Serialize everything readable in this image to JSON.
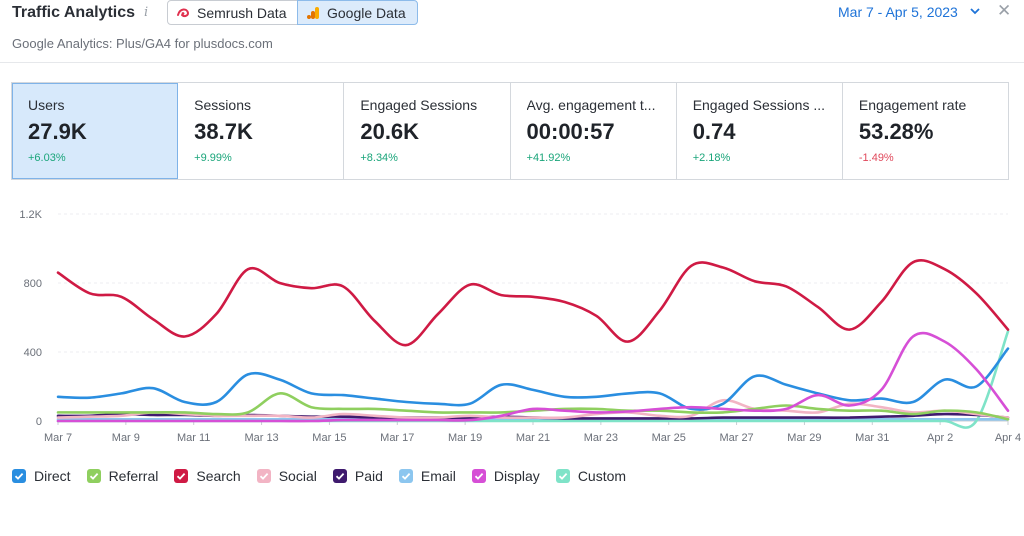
{
  "header": {
    "title": "Traffic Analytics",
    "info_icon": "info-icon",
    "sources": [
      {
        "label": "Semrush Data",
        "icon": "semrush-logo-icon",
        "active": false,
        "color": "#ff642d"
      },
      {
        "label": "Google Data",
        "icon": "google-analytics-icon",
        "active": true,
        "color": "#f9ab00"
      }
    ],
    "date_range": "Mar 7 - Apr 5, 2023",
    "subtitle": "Google Analytics: Plus/GA4 for plusdocs.com"
  },
  "kpis": [
    {
      "label": "Users",
      "value": "27.9K",
      "delta": "+6.03%",
      "trend": "up",
      "active": true
    },
    {
      "label": "Sessions",
      "value": "38.7K",
      "delta": "+9.99%",
      "trend": "up",
      "active": false
    },
    {
      "label": "Engaged Sessions",
      "value": "20.6K",
      "delta": "+8.34%",
      "trend": "up",
      "active": false
    },
    {
      "label": "Avg. engagement t...",
      "value": "00:00:57",
      "delta": "+41.92%",
      "trend": "up",
      "active": false
    },
    {
      "label": "Engaged Sessions ...",
      "value": "0.74",
      "delta": "+2.18%",
      "trend": "up",
      "active": false
    },
    {
      "label": "Engagement rate",
      "value": "53.28%",
      "delta": "-1.49%",
      "trend": "down",
      "active": false
    }
  ],
  "chart_data": {
    "type": "line",
    "title": "",
    "xlabel": "",
    "ylabel": "",
    "ylim": [
      0,
      1200
    ],
    "yticks": [
      0,
      400,
      800,
      1200
    ],
    "ytick_labels": [
      "0",
      "400",
      "800",
      "1.2K"
    ],
    "xtick_labels": [
      "Mar 7",
      "Mar 9",
      "Mar 11",
      "Mar 13",
      "Mar 15",
      "Mar 17",
      "Mar 19",
      "Mar 21",
      "Mar 23",
      "Mar 25",
      "Mar 27",
      "Mar 29",
      "Mar 31",
      "Apr 2",
      "Apr 4"
    ],
    "grid": true,
    "legend_position": "bottom-left",
    "series": [
      {
        "name": "Direct",
        "color": "#2a8ee0",
        "values": [
          140,
          135,
          160,
          190,
          110,
          110,
          270,
          240,
          160,
          150,
          130,
          110,
          100,
          100,
          210,
          180,
          140,
          140,
          160,
          160,
          70,
          100,
          260,
          210,
          160,
          120,
          130,
          110,
          240,
          200,
          420
        ]
      },
      {
        "name": "Referral",
        "color": "#8fcf5f",
        "values": [
          50,
          50,
          50,
          50,
          50,
          40,
          50,
          160,
          80,
          70,
          70,
          60,
          50,
          50,
          50,
          60,
          70,
          70,
          60,
          60,
          50,
          50,
          70,
          90,
          70,
          60,
          60,
          40,
          60,
          50,
          10
        ]
      },
      {
        "name": "Search",
        "color": "#cf1a44",
        "values": [
          860,
          740,
          720,
          590,
          490,
          620,
          880,
          800,
          770,
          780,
          580,
          440,
          620,
          790,
          730,
          720,
          690,
          610,
          460,
          640,
          900,
          890,
          810,
          780,
          660,
          530,
          690,
          920,
          880,
          740,
          530
        ]
      },
      {
        "name": "Social",
        "color": "#f2b4c4",
        "values": [
          20,
          25,
          30,
          50,
          40,
          30,
          30,
          30,
          20,
          40,
          30,
          20,
          20,
          30,
          20,
          20,
          20,
          40,
          50,
          30,
          30,
          120,
          70,
          60,
          50,
          100,
          80,
          50,
          60,
          40,
          20
        ]
      },
      {
        "name": "Paid",
        "color": "#3f1a6e",
        "values": [
          30,
          30,
          40,
          35,
          35,
          30,
          35,
          30,
          25,
          25,
          20,
          20,
          20,
          20,
          25,
          20,
          15,
          15,
          15,
          15,
          15,
          20,
          20,
          20,
          20,
          20,
          25,
          30,
          40,
          35,
          20
        ]
      },
      {
        "name": "Email",
        "color": "#8cc6ef",
        "values": [
          10,
          10,
          10,
          10,
          10,
          10,
          10,
          10,
          10,
          10,
          10,
          10,
          10,
          10,
          10,
          10,
          10,
          10,
          10,
          10,
          10,
          10,
          10,
          10,
          10,
          10,
          10,
          10,
          10,
          10,
          10
        ]
      },
      {
        "name": "Display",
        "color": "#d64fd6",
        "values": [
          0,
          0,
          0,
          0,
          0,
          0,
          0,
          0,
          0,
          5,
          5,
          5,
          5,
          5,
          30,
          70,
          60,
          50,
          55,
          70,
          80,
          70,
          60,
          70,
          150,
          90,
          180,
          490,
          460,
          300,
          60
        ]
      },
      {
        "name": "Custom",
        "color": "#7fe3c8",
        "values": [
          0,
          0,
          0,
          0,
          0,
          0,
          0,
          0,
          0,
          0,
          0,
          0,
          0,
          0,
          0,
          0,
          0,
          0,
          0,
          0,
          0,
          0,
          0,
          0,
          0,
          0,
          0,
          0,
          0,
          0,
          520
        ]
      }
    ]
  }
}
